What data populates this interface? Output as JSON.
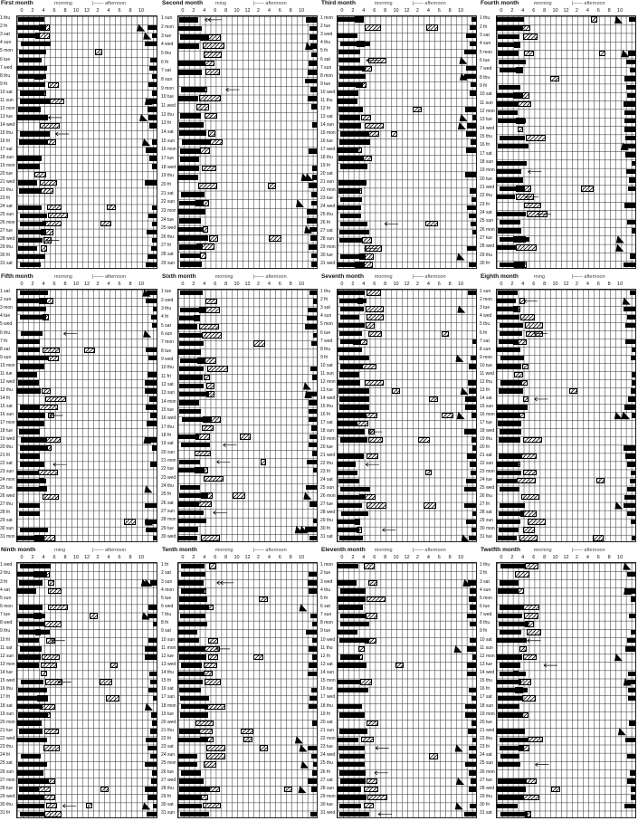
{
  "labels": {
    "morning": "morning",
    "afternoon": "afternoon",
    "morning_trunc": "rning"
  },
  "ticks": [
    "0",
    "2",
    "4",
    "6",
    "8",
    "10",
    "12",
    "2",
    "4",
    "6",
    "8",
    "10"
  ],
  "ticks_short": [
    "0",
    "2",
    "4",
    "6",
    "8",
    "10",
    "12",
    "2",
    "4",
    "6",
    "8",
    "10"
  ],
  "weekdays": [
    "thu",
    "fri",
    "sat",
    "sun",
    "mon",
    "tue",
    "wed"
  ],
  "months": [
    {
      "title": "First month",
      "days": 31,
      "start": 0,
      "morning_label": "morning"
    },
    {
      "title": "Second month",
      "days": 29,
      "start": 3,
      "morning_label": "rning"
    },
    {
      "title": "Third month",
      "days": 31,
      "start": 4,
      "morning_label": "morning"
    },
    {
      "title": "Fourth month",
      "days": 30,
      "start": 0,
      "morning_label": "morning"
    },
    {
      "title": "Fifth month",
      "days": 31,
      "start": 2,
      "morning_label": "morning"
    },
    {
      "title": "Sixth month",
      "days": 30,
      "start": 5,
      "morning_label": "morning"
    },
    {
      "title": "Seventh month",
      "days": 31,
      "start": 0,
      "morning_label": "morning"
    },
    {
      "title": "Eighth month",
      "days": 31,
      "start": 3,
      "morning_label": "rning"
    },
    {
      "title": "Ninth month",
      "days": 31,
      "start": 6,
      "morning_label": "rning"
    },
    {
      "title": "Tenth month",
      "days": 31,
      "start": 1,
      "morning_label": "morning"
    },
    {
      "title": "Eleventh month",
      "days": 31,
      "start": 4,
      "morning_label": "morning"
    },
    {
      "title": "Twelfth month",
      "days": 31,
      "start": 0,
      "morning_label": "morning"
    }
  ]
}
